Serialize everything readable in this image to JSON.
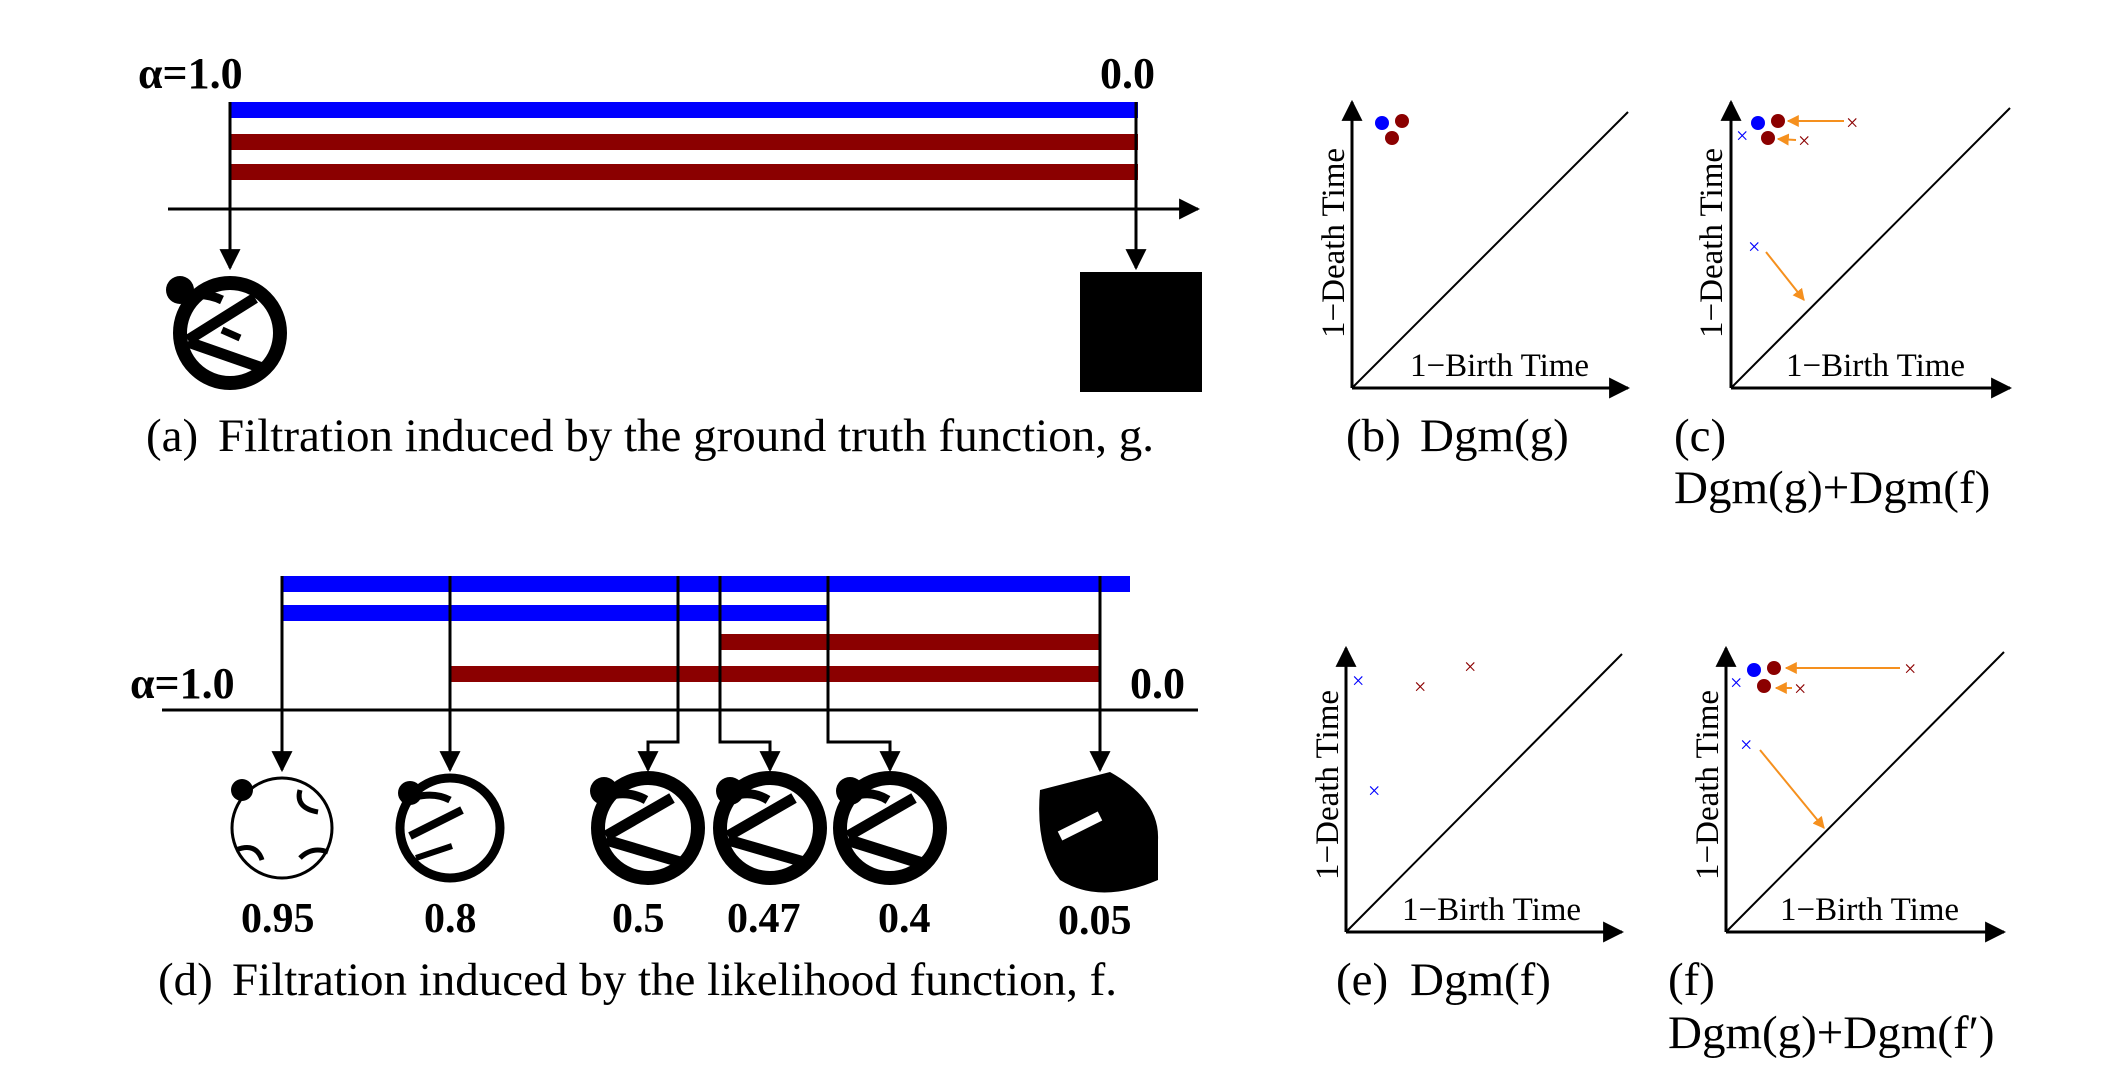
{
  "colors": {
    "blue": "#0000ff",
    "red": "#8b0000",
    "orange": "#f5901e",
    "black": "#000000"
  },
  "panel_a": {
    "alpha_start": "α=1.0",
    "alpha_end": "0.0",
    "caption_tag": "(a)",
    "caption_text": "Filtration induced by the ground truth function, g.",
    "images": [
      "ring-with-bars-icon",
      "black-square"
    ]
  },
  "panel_d": {
    "alpha_start": "α=1.0",
    "alpha_end": "0.0",
    "caption_tag": "(d)",
    "caption_text": "Filtration induced by the likelihood function, f.",
    "thresholds": [
      "0.95",
      "0.8",
      "0.5",
      "0.47",
      "0.4",
      "0.05"
    ]
  },
  "diagrams": {
    "b": {
      "tag": "(b)",
      "title": "Dgm(g)"
    },
    "c": {
      "tag": "(c)",
      "title": "Dgm(g)+Dgm(f)"
    },
    "e": {
      "tag": "(e)",
      "title": "Dgm(f)"
    },
    "f": {
      "tag": "(f)",
      "title": "Dgm(g)+Dgm(f′)"
    },
    "xlabel": "1−Birth Time",
    "ylabel": "1−Death Time"
  }
}
